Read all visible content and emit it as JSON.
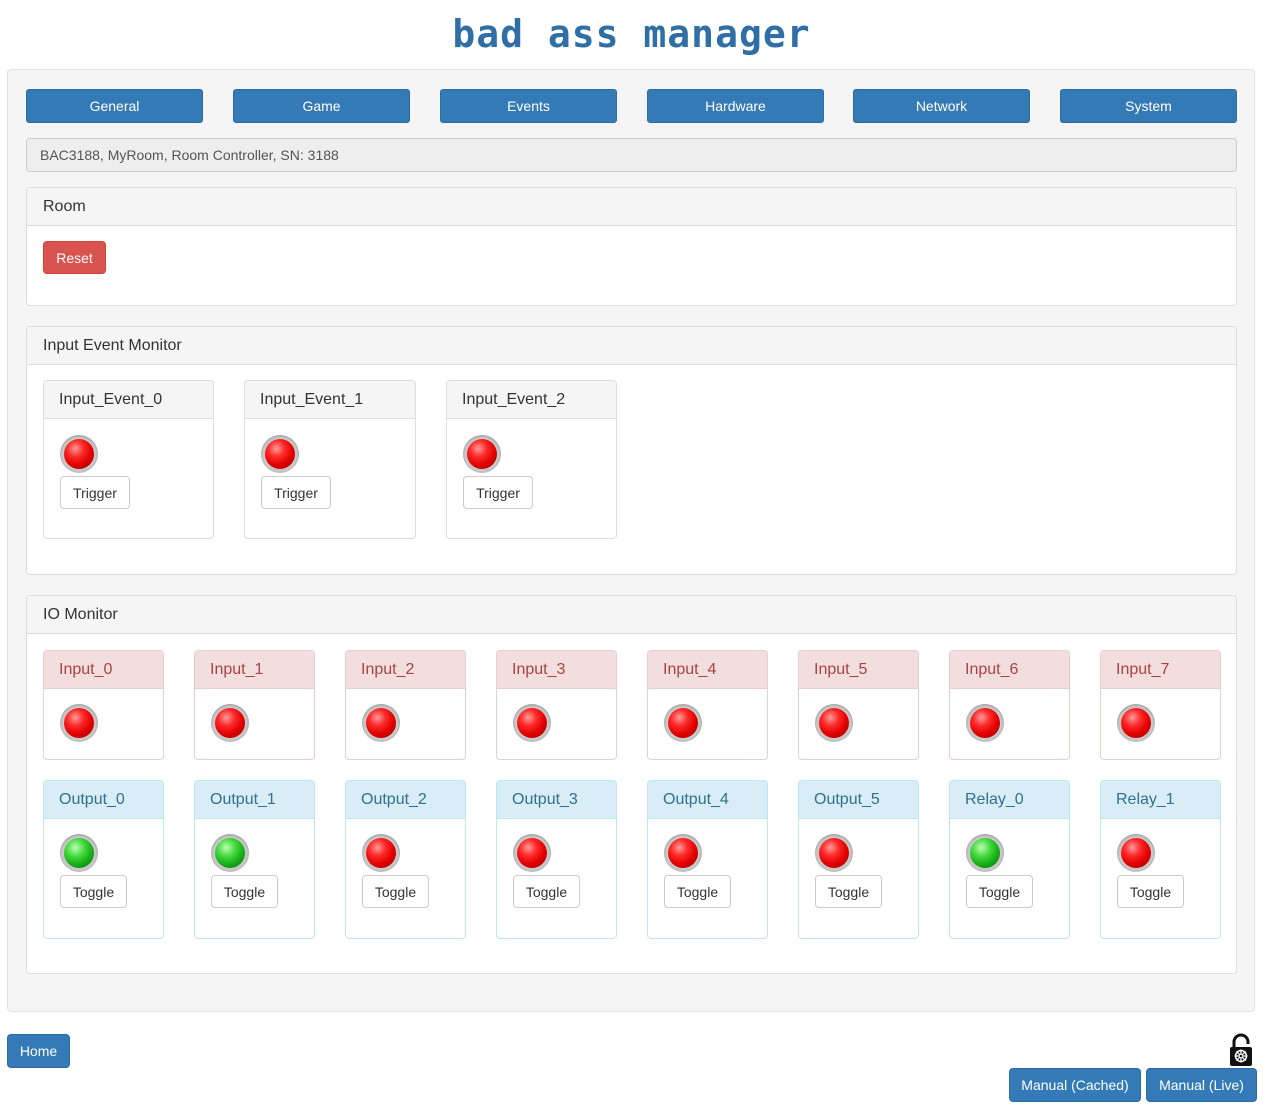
{
  "header": {
    "title": "bad ass manager"
  },
  "nav": [
    {
      "label": "General"
    },
    {
      "label": "Game"
    },
    {
      "label": "Events"
    },
    {
      "label": "Hardware"
    },
    {
      "label": "Network"
    },
    {
      "label": "System"
    }
  ],
  "info": {
    "text": "BAC3188, MyRoom, Room Controller, SN: 3188"
  },
  "room": {
    "title": "Room",
    "reset_label": "Reset"
  },
  "input_event_monitor": {
    "title": "Input Event Monitor",
    "events": [
      {
        "name": "Input_Event_0",
        "state": "red",
        "button": "Trigger"
      },
      {
        "name": "Input_Event_1",
        "state": "red",
        "button": "Trigger"
      },
      {
        "name": "Input_Event_2",
        "state": "red",
        "button": "Trigger"
      }
    ]
  },
  "io_monitor": {
    "title": "IO Monitor",
    "inputs": [
      {
        "name": "Input_0",
        "state": "red"
      },
      {
        "name": "Input_1",
        "state": "red"
      },
      {
        "name": "Input_2",
        "state": "red"
      },
      {
        "name": "Input_3",
        "state": "red"
      },
      {
        "name": "Input_4",
        "state": "red"
      },
      {
        "name": "Input_5",
        "state": "red"
      },
      {
        "name": "Input_6",
        "state": "red"
      },
      {
        "name": "Input_7",
        "state": "red"
      }
    ],
    "outputs": [
      {
        "name": "Output_0",
        "state": "green",
        "button": "Toggle"
      },
      {
        "name": "Output_1",
        "state": "green",
        "button": "Toggle"
      },
      {
        "name": "Output_2",
        "state": "red",
        "button": "Toggle"
      },
      {
        "name": "Output_3",
        "state": "red",
        "button": "Toggle"
      },
      {
        "name": "Output_4",
        "state": "red",
        "button": "Toggle"
      },
      {
        "name": "Output_5",
        "state": "red",
        "button": "Toggle"
      },
      {
        "name": "Relay_0",
        "state": "green",
        "button": "Toggle"
      },
      {
        "name": "Relay_1",
        "state": "red",
        "button": "Toggle"
      }
    ]
  },
  "footer": {
    "home_label": "Home",
    "manual_cached_label": "Manual (Cached)",
    "manual_live_label": "Manual (Live)",
    "lock_icon": "unlocked-padlock-icon"
  },
  "colors": {
    "primary": "#337ab7",
    "danger": "#d9534f",
    "led_on": "#14a814",
    "led_off": "#e00000"
  }
}
